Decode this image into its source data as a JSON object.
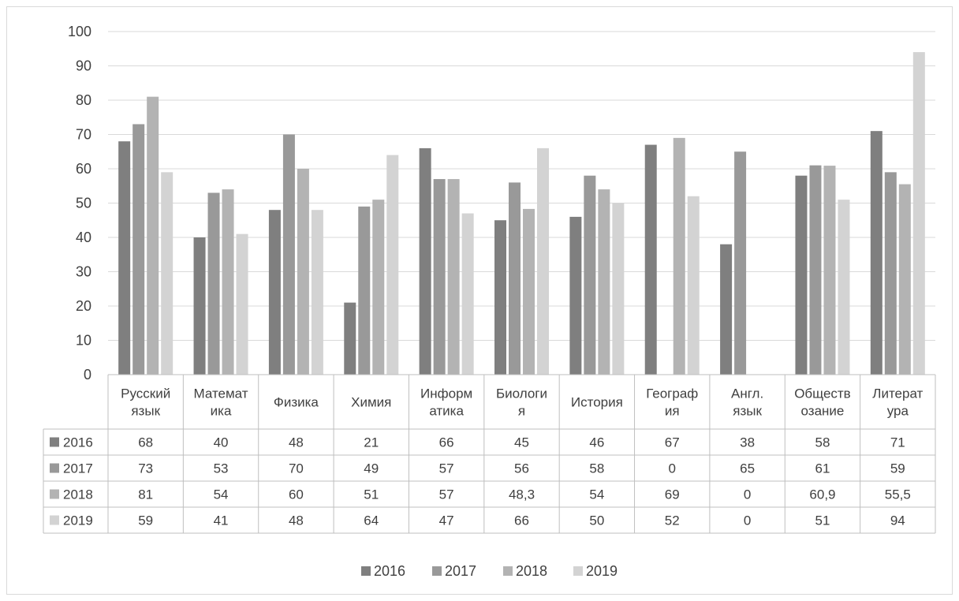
{
  "chart_data": {
    "type": "bar",
    "categories": [
      [
        "Русский",
        "язык"
      ],
      [
        "Математ",
        "ика"
      ],
      [
        "Физика"
      ],
      [
        "Химия"
      ],
      [
        "Информ",
        "атика"
      ],
      [
        "Биологи",
        "я"
      ],
      [
        "История"
      ],
      [
        "Географ",
        "ия"
      ],
      [
        "Англ.",
        "язык"
      ],
      [
        "Обществ",
        "озание"
      ],
      [
        "Литерат",
        "ура"
      ]
    ],
    "series": [
      {
        "name": "2016",
        "color": "#7f7f7f",
        "values": [
          68,
          40,
          48,
          21,
          66,
          45,
          46,
          67,
          38,
          58,
          71
        ],
        "labels": [
          "68",
          "40",
          "48",
          "21",
          "66",
          "45",
          "46",
          "67",
          "38",
          "58",
          "71"
        ]
      },
      {
        "name": "2017",
        "color": "#999999",
        "values": [
          73,
          53,
          70,
          49,
          57,
          56,
          58,
          0,
          65,
          61,
          59
        ],
        "labels": [
          "73",
          "53",
          "70",
          "49",
          "57",
          "56",
          "58",
          "0",
          "65",
          "61",
          "59"
        ]
      },
      {
        "name": "2018",
        "color": "#b3b3b3",
        "values": [
          81,
          54,
          60,
          51,
          57,
          48.3,
          54,
          69,
          0,
          60.9,
          55.5
        ],
        "labels": [
          "81",
          "54",
          "60",
          "51",
          "57",
          "48,3",
          "54",
          "69",
          "0",
          "60,9",
          "55,5"
        ]
      },
      {
        "name": "2019",
        "color": "#d3d3d3",
        "values": [
          59,
          41,
          48,
          64,
          47,
          66,
          50,
          52,
          0,
          51,
          94
        ],
        "labels": [
          "59",
          "41",
          "48",
          "64",
          "47",
          "66",
          "50",
          "52",
          "0",
          "51",
          "94"
        ]
      }
    ],
    "ylim": [
      0,
      100
    ],
    "yticks": [
      0,
      10,
      20,
      30,
      40,
      50,
      60,
      70,
      80,
      90,
      100
    ],
    "grid": true,
    "data_table": true,
    "legend_position": "bottom"
  }
}
